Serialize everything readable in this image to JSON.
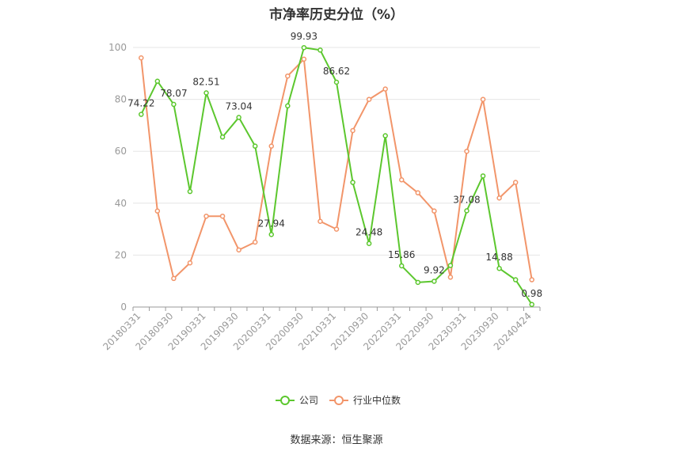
{
  "title": "市净率历史分位（%）",
  "source": "数据来源：恒生聚源",
  "colors": {
    "company": "#5cc72e",
    "industry": "#f2956a",
    "grid": "#e6e6e6",
    "axis": "#999999"
  },
  "chart_data": {
    "type": "line",
    "title": "市净率历史分位（%）",
    "ylim": [
      0,
      100
    ],
    "yticks": [
      0,
      20,
      40,
      60,
      80,
      100
    ],
    "x": [
      "20180331",
      "20180630",
      "20180930",
      "20181231",
      "20190331",
      "20190630",
      "20190930",
      "20191231",
      "20200331",
      "20200630",
      "20200930",
      "20201231",
      "20210331",
      "20210630",
      "20210930",
      "20211231",
      "20220331",
      "20220630",
      "20220930",
      "20221231",
      "20230331",
      "20230630",
      "20230930",
      "20231231",
      "20240424"
    ],
    "x_tick_labels": [
      "20180331",
      "20180930",
      "20190331",
      "20190930",
      "20200331",
      "20200930",
      "20210331",
      "20210930",
      "20220331",
      "20220930",
      "20230331",
      "20230930",
      "20240424"
    ],
    "series": [
      {
        "name": "公司",
        "values": [
          74.22,
          87,
          78.07,
          44.5,
          82.51,
          65.5,
          73.04,
          62,
          27.94,
          77.5,
          99.93,
          99,
          86.62,
          48,
          24.48,
          66,
          15.86,
          9.5,
          9.92,
          16,
          37.08,
          50.5,
          14.88,
          10.5,
          0.98
        ],
        "labels": {
          "0": "74.22",
          "2": "78.07",
          "4": "82.51",
          "6": "73.04",
          "8": "27.94",
          "10": "99.93",
          "12": "86.62",
          "14": "24.48",
          "16": "15.86",
          "18": "9.92",
          "20": "37.08",
          "22": "14.88",
          "24": "0.98"
        }
      },
      {
        "name": "行业中位数",
        "values": [
          96,
          37,
          11,
          17,
          35,
          35,
          22,
          25,
          62,
          89,
          95.5,
          33,
          30,
          68,
          80,
          84,
          49,
          44,
          37,
          11.5,
          60,
          80,
          42,
          48,
          10.5
        ]
      }
    ],
    "legend_position": "bottom"
  }
}
